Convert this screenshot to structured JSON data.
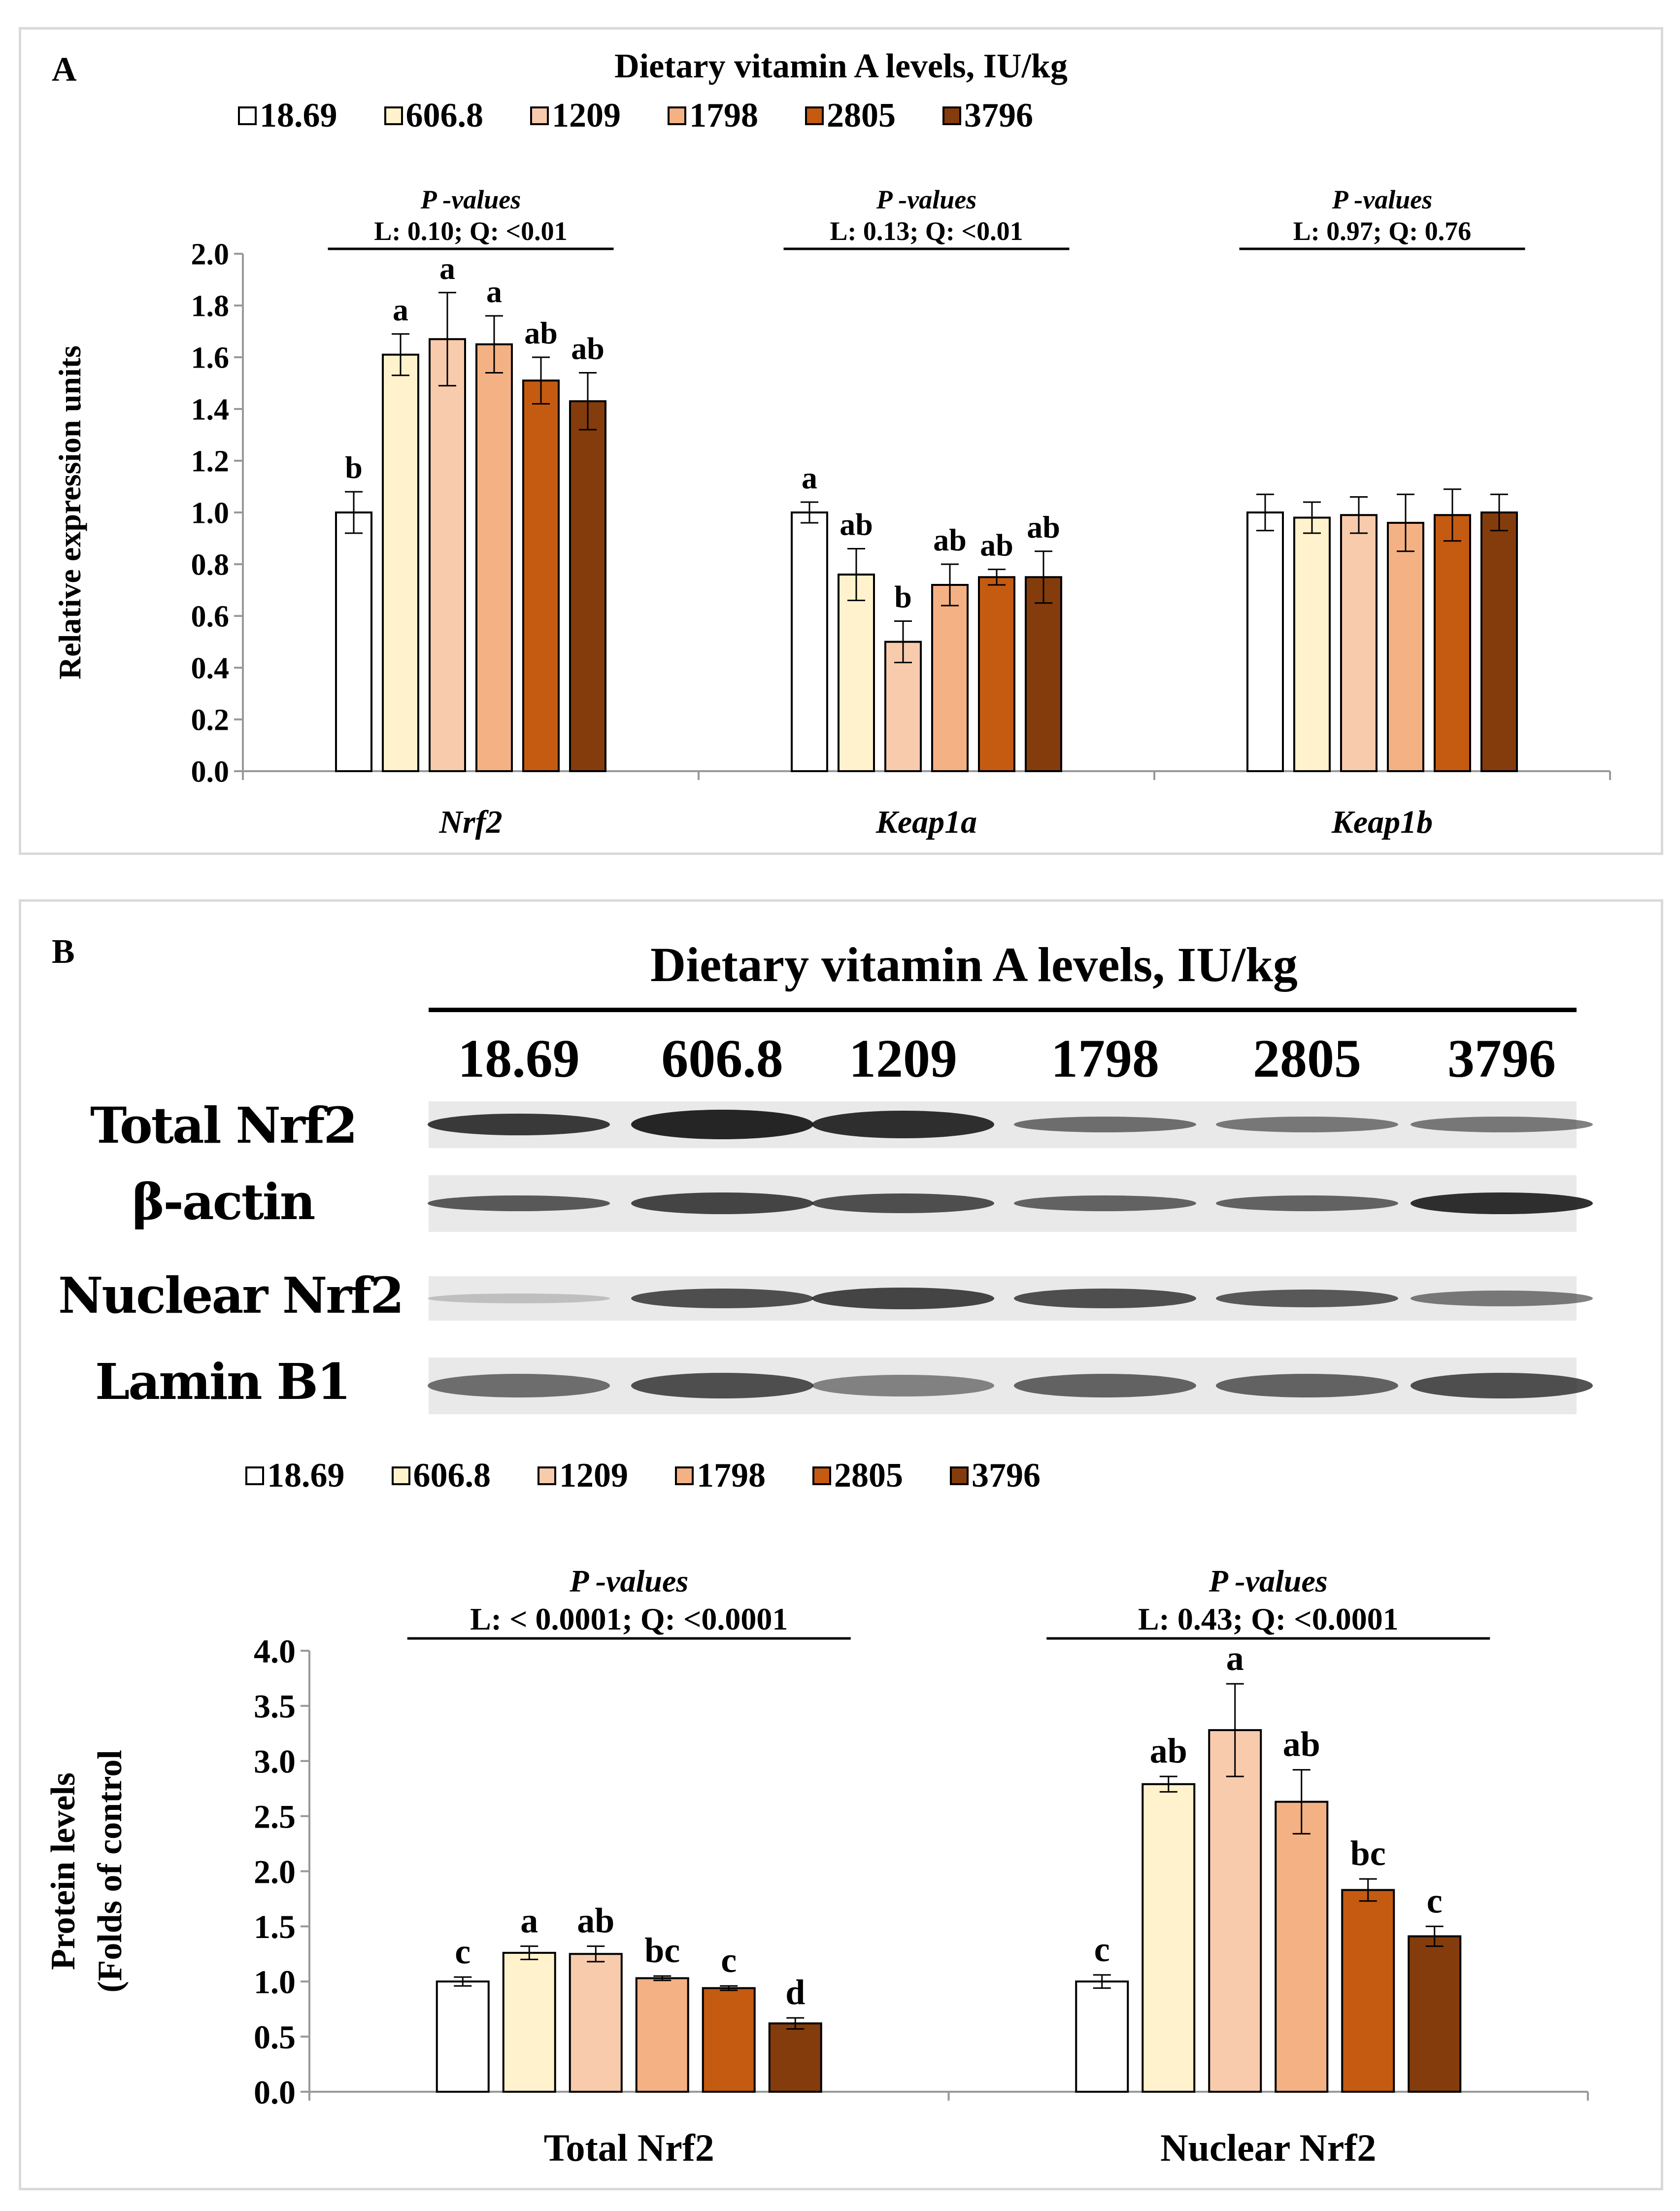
{
  "panel_a": {
    "label": "A",
    "legend_title": "Dietary vitamin A levels, IU/kg"
  },
  "panel_b": {
    "label": "B",
    "blot_title": "Dietary vitamin A levels, IU/kg",
    "lane_labels": [
      "18.69",
      "606.8",
      "1209",
      "1798",
      "2805",
      "3796"
    ],
    "blot_rows": [
      "Total Nrf2",
      "β-actin",
      "Nuclear Nrf2",
      "Lamin B1"
    ]
  },
  "legend": [
    {
      "label": "18.69",
      "color": "#ffffff"
    },
    {
      "label": "606.8",
      "color": "#fff2cc"
    },
    {
      "label": "1209",
      "color": "#f8cbad"
    },
    {
      "label": "1798",
      "color": "#f4b183"
    },
    {
      "label": "2805",
      "color": "#c55a11"
    },
    {
      "label": "3796",
      "color": "#843c0c"
    }
  ],
  "chart_data": [
    {
      "type": "bar",
      "title": "Dietary vitamin A levels, IU/kg",
      "xlabel": "",
      "ylabel": "Relative expression units",
      "ylim": [
        0,
        2.0
      ],
      "yticks": [
        "0.0",
        "0.2",
        "0.4",
        "0.6",
        "0.8",
        "1.0",
        "1.2",
        "1.4",
        "1.6",
        "1.8",
        "2.0"
      ],
      "categories": [
        "Nrf2",
        "Keap1a",
        "Keap1b"
      ],
      "series": [
        {
          "name": "18.69",
          "values": [
            1.0,
            1.0,
            1.0
          ],
          "errors": [
            0.08,
            0.04,
            0.07
          ],
          "labels": [
            "b",
            "a",
            ""
          ]
        },
        {
          "name": "606.8",
          "values": [
            1.61,
            0.76,
            0.98
          ],
          "errors": [
            0.08,
            0.1,
            0.06
          ],
          "labels": [
            "a",
            "ab",
            ""
          ]
        },
        {
          "name": "1209",
          "values": [
            1.67,
            0.5,
            0.99
          ],
          "errors": [
            0.18,
            0.08,
            0.07
          ],
          "labels": [
            "a",
            "b",
            ""
          ]
        },
        {
          "name": "1798",
          "values": [
            1.65,
            0.72,
            0.96
          ],
          "errors": [
            0.11,
            0.08,
            0.11
          ],
          "labels": [
            "a",
            "ab",
            ""
          ]
        },
        {
          "name": "2805",
          "values": [
            1.51,
            0.75,
            0.99
          ],
          "errors": [
            0.09,
            0.03,
            0.1
          ],
          "labels": [
            "ab",
            "ab",
            ""
          ]
        },
        {
          "name": "3796",
          "values": [
            1.43,
            0.75,
            1.0
          ],
          "errors": [
            0.11,
            0.1,
            0.07
          ],
          "labels": [
            "ab",
            "ab",
            ""
          ]
        }
      ],
      "pvalue_title": "P -values",
      "pvalues": [
        "L: 0.10; Q: <0.01",
        "L: 0.13; Q: <0.01",
        "L: 0.97; Q: 0.76"
      ]
    },
    {
      "type": "bar",
      "title": "",
      "xlabel": "",
      "ylabel_lines": [
        "Protein levels",
        "(Folds of control"
      ],
      "ylim": [
        0,
        4.0
      ],
      "yticks": [
        "0.0",
        "0.5",
        "1.0",
        "1.5",
        "2.0",
        "2.5",
        "3.0",
        "3.5",
        "4.0"
      ],
      "categories": [
        "Total Nrf2",
        "Nuclear Nrf2"
      ],
      "series": [
        {
          "name": "18.69",
          "values": [
            1.0,
            1.0
          ],
          "errors": [
            0.04,
            0.06
          ],
          "labels": [
            "c",
            "c"
          ]
        },
        {
          "name": "606.8",
          "values": [
            1.26,
            2.79
          ],
          "errors": [
            0.06,
            0.07
          ],
          "labels": [
            "a",
            "ab"
          ]
        },
        {
          "name": "1209",
          "values": [
            1.25,
            3.28
          ],
          "errors": [
            0.07,
            0.42
          ],
          "labels": [
            "ab",
            "a"
          ]
        },
        {
          "name": "1798",
          "values": [
            1.03,
            2.63
          ],
          "errors": [
            0.02,
            0.29
          ],
          "labels": [
            "bc",
            "ab"
          ]
        },
        {
          "name": "2805",
          "values": [
            0.94,
            1.83
          ],
          "errors": [
            0.02,
            0.1
          ],
          "labels": [
            "c",
            "bc"
          ]
        },
        {
          "name": "3796",
          "values": [
            0.62,
            1.41
          ],
          "errors": [
            0.05,
            0.09
          ],
          "labels": [
            "d",
            "c"
          ]
        }
      ],
      "pvalue_title": "P -values",
      "pvalues": [
        "L: < 0.0001; Q: <0.0001",
        "L: 0.43; Q: <0.0001"
      ]
    }
  ]
}
